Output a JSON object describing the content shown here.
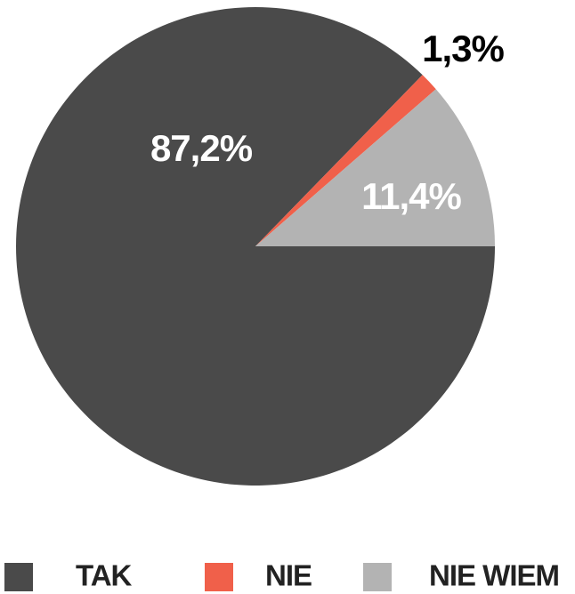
{
  "chart_data": {
    "type": "pie",
    "categories": [
      "TAK",
      "NIE",
      "NIE WIEM"
    ],
    "values": [
      87.2,
      1.3,
      11.4
    ],
    "value_labels": [
      "87,2%",
      "1,3%",
      "11,4%"
    ],
    "colors": [
      "#4a4a4a",
      "#f0604a",
      "#b3b3b3"
    ]
  }
}
